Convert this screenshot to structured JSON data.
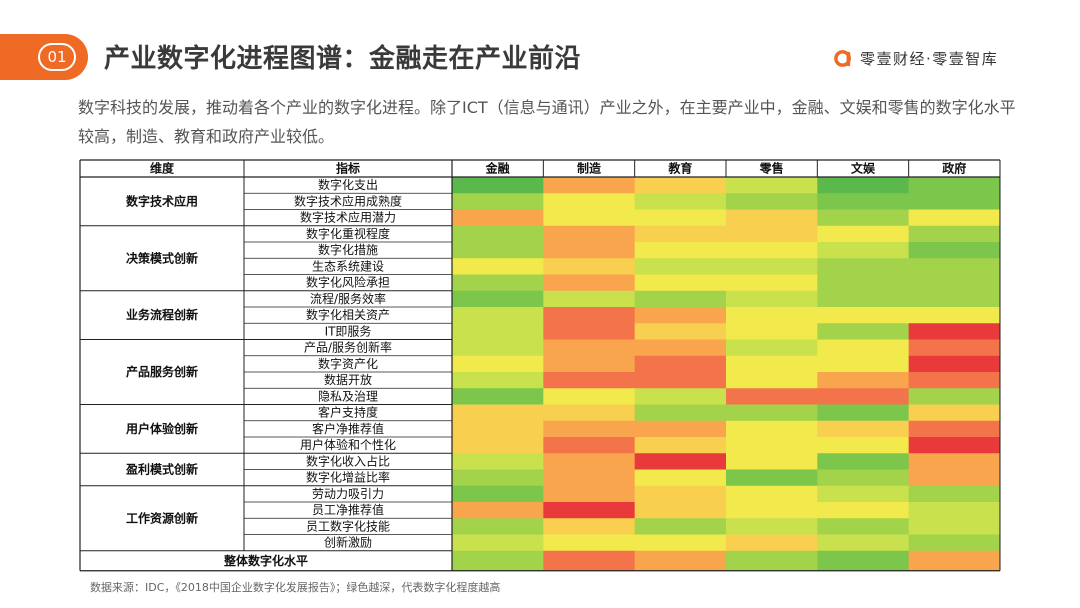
{
  "header": {
    "section_number": "01",
    "title": "产业数字化进程图谱：金融走在产业前沿"
  },
  "logo": {
    "text": "零壹财经·零壹智库",
    "icon": "orange-a-logo-icon",
    "color": "#ef6a25"
  },
  "intro": "数字科技的发展，推动着各个产业的数字化进程。除了ICT（信息与通讯）产业之外，在主要产业中，金融、文娱和零售的数字化水平较高，制造、教育和政府产业较低。",
  "source_note": "数据来源：IDC，《2018中国企业数字化发展报告》；绿色越深，代表数字化程度越高",
  "colors": {
    "accent": "#ef6a25",
    "scale": [
      "#e83a3a",
      "#f3744a",
      "#f9a54e",
      "#f8cf4f",
      "#f2e94c",
      "#c9e14c",
      "#a3d34b",
      "#7cc64c",
      "#5bb94c"
    ]
  },
  "chart_data": {
    "type": "heatmap",
    "value_scale": "1 = 红色（最低）… 9 = 深绿（最高）",
    "headers": [
      "维度",
      "指标",
      "金融",
      "制造",
      "教育",
      "零售",
      "文娱",
      "政府"
    ],
    "industries": [
      "金融",
      "制造",
      "教育",
      "零售",
      "文娱",
      "政府"
    ],
    "dimensions": [
      {
        "name": "数字技术应用",
        "indicators": [
          "数字化支出",
          "数字技术应用成熟度",
          "数字技术应用潜力"
        ]
      },
      {
        "name": "决策模式创新",
        "indicators": [
          "数字化重视程度",
          "数字化措施",
          "生态系统建设",
          "数字化风险承担"
        ]
      },
      {
        "name": "业务流程创新",
        "indicators": [
          "流程/服务效率",
          "数字化相关资产",
          "IT即服务"
        ]
      },
      {
        "name": "产品服务创新",
        "indicators": [
          "产品/服务创新率",
          "数字资产化",
          "数据开放",
          "隐私及治理"
        ]
      },
      {
        "name": "用户体验创新",
        "indicators": [
          "客户支持度",
          "客户净推荐值",
          "用户体验和个性化"
        ]
      },
      {
        "name": "盈利模式创新",
        "indicators": [
          "数字化收入占比",
          "数字化增益比率"
        ]
      },
      {
        "name": "工作资源创新",
        "indicators": [
          "劳动力吸引力",
          "员工净推荐值",
          "员工数字化技能",
          "创新激励"
        ]
      }
    ],
    "overall_label": "整体数字化水平",
    "values": [
      [
        9,
        3,
        4,
        6,
        9,
        8
      ],
      [
        7,
        5,
        6,
        7,
        8,
        8
      ],
      [
        3,
        5,
        5,
        4,
        7,
        5
      ],
      [
        7,
        3,
        4,
        4,
        5,
        7
      ],
      [
        7,
        3,
        5,
        5,
        6,
        8
      ],
      [
        5,
        4,
        6,
        6,
        7,
        7
      ],
      [
        7,
        3,
        5,
        5,
        7,
        7
      ],
      [
        8,
        6,
        7,
        6,
        7,
        7
      ],
      [
        6,
        2,
        3,
        5,
        5,
        5
      ],
      [
        6,
        2,
        4,
        5,
        7,
        1
      ],
      [
        6,
        3,
        3,
        6,
        5,
        2
      ],
      [
        5,
        3,
        2,
        5,
        5,
        1
      ],
      [
        6,
        2,
        2,
        5,
        3,
        2
      ],
      [
        8,
        5,
        6,
        2,
        2,
        7
      ],
      [
        4,
        4,
        7,
        7,
        8,
        4
      ],
      [
        4,
        3,
        3,
        5,
        4,
        2
      ],
      [
        4,
        2,
        4,
        5,
        5,
        1
      ],
      [
        6,
        3,
        1,
        5,
        8,
        3
      ],
      [
        7,
        3,
        5,
        8,
        7,
        3
      ],
      [
        8,
        3,
        4,
        5,
        6,
        7
      ],
      [
        3,
        1,
        4,
        5,
        5,
        6
      ],
      [
        7,
        4,
        7,
        6,
        7,
        6
      ],
      [
        6,
        5,
        5,
        4,
        6,
        7
      ],
      [
        7,
        2,
        3,
        7,
        8,
        3
      ]
    ]
  }
}
